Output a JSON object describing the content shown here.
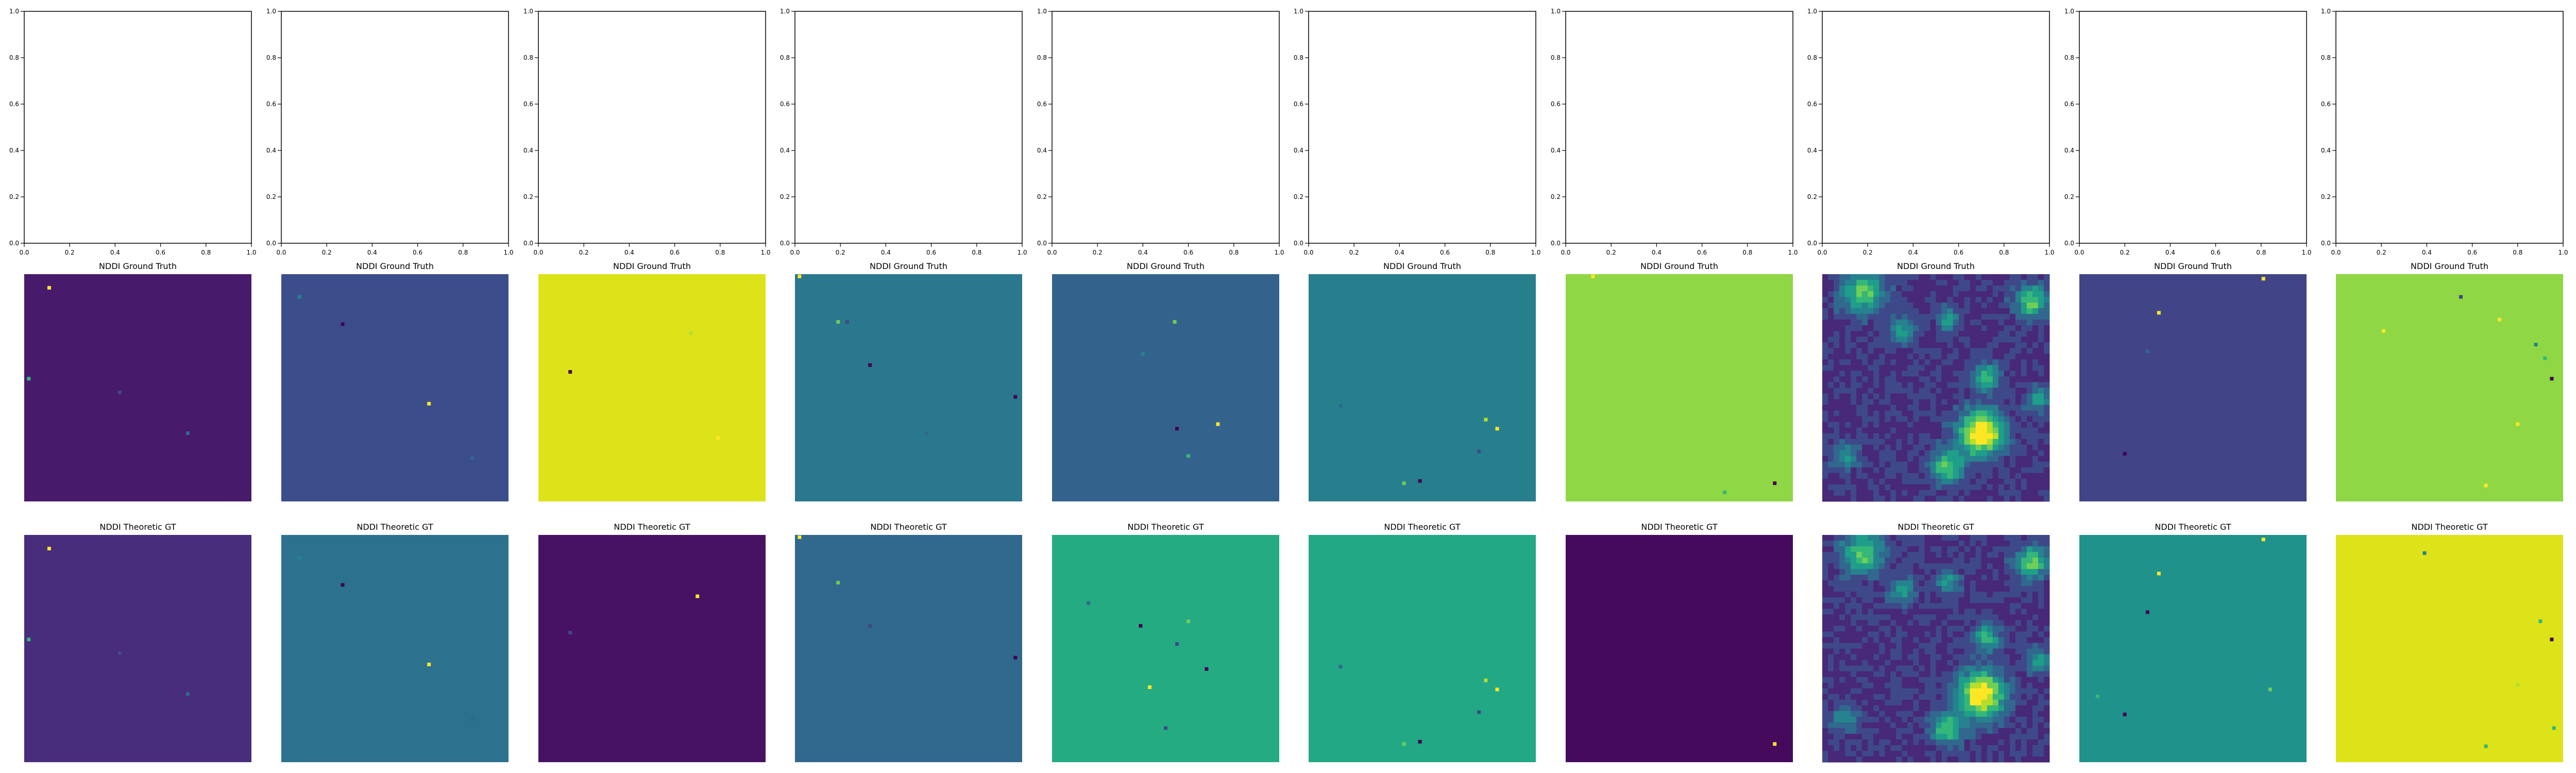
{
  "figure": {
    "row_titles": [
      "NDDI Ground Truth",
      "NDDI Theoretic GT"
    ]
  },
  "empty_axes": {
    "x_ticks": [
      "0.0",
      "0.2",
      "0.4",
      "0.6",
      "0.8",
      "1.0"
    ],
    "y_ticks": [
      "0.0",
      "0.2",
      "0.4",
      "0.6",
      "0.8",
      "1.0"
    ]
  },
  "colors": {
    "viridis": [
      "#440154",
      "#482878",
      "#3e4989",
      "#31688e",
      "#26828e",
      "#1f9e89",
      "#35b779",
      "#6ece58",
      "#b5de2b",
      "#fde725"
    ]
  },
  "chart_data": [
    {
      "type": "heatmap",
      "description_row": "ground_truth",
      "title": "NDDI Ground Truth",
      "panels": [
        {
          "background": "#481a6c",
          "pattern": "sparse",
          "specks": [
            [
              0.11,
              0.06,
              "#fde725"
            ],
            [
              0.02,
              0.46,
              "#35b779"
            ],
            [
              0.42,
              0.52,
              "#3e4989"
            ],
            [
              0.72,
              0.7,
              "#31688e"
            ]
          ]
        },
        {
          "background": "#3c4d8b",
          "pattern": "sparse",
          "specks": [
            [
              0.27,
              0.22,
              "#440154"
            ],
            [
              0.65,
              0.57,
              "#fde725"
            ],
            [
              0.08,
              0.1,
              "#26828e"
            ],
            [
              0.84,
              0.81,
              "#31688e"
            ]
          ]
        },
        {
          "background": "#dce319",
          "pattern": "sparse",
          "specks": [
            [
              0.14,
              0.43,
              "#440154"
            ],
            [
              0.79,
              0.72,
              "#fde725"
            ],
            [
              0.67,
              0.26,
              "#b5de2b"
            ]
          ]
        },
        {
          "background": "#2a788e",
          "pattern": "sparse",
          "specks": [
            [
              0.02,
              0.01,
              "#fde725"
            ],
            [
              0.19,
              0.21,
              "#6ece58"
            ],
            [
              0.33,
              0.4,
              "#440154"
            ],
            [
              0.97,
              0.54,
              "#440154"
            ],
            [
              0.58,
              0.7,
              "#31688e"
            ],
            [
              0.23,
              0.21,
              "#3e4989"
            ]
          ]
        },
        {
          "background": "#33638d",
          "pattern": "sparse",
          "specks": [
            [
              0.55,
              0.68,
              "#440154"
            ],
            [
              0.73,
              0.66,
              "#fde725"
            ],
            [
              0.54,
              0.21,
              "#6ece58"
            ],
            [
              0.6,
              0.8,
              "#35b779"
            ],
            [
              0.4,
              0.35,
              "#26828e"
            ]
          ]
        },
        {
          "background": "#277f8e",
          "pattern": "sparse",
          "specks": [
            [
              0.49,
              0.91,
              "#440154"
            ],
            [
              0.42,
              0.92,
              "#6ece58"
            ],
            [
              0.83,
              0.68,
              "#fde725"
            ],
            [
              0.78,
              0.64,
              "#b5de2b"
            ],
            [
              0.75,
              0.78,
              "#3e4989"
            ],
            [
              0.14,
              0.58,
              "#31688e"
            ]
          ]
        },
        {
          "background": "#8fd744",
          "pattern": "sparse",
          "specks": [
            [
              0.92,
              0.92,
              "#440154"
            ],
            [
              0.12,
              0.01,
              "#fde725"
            ],
            [
              0.7,
              0.96,
              "#35b779"
            ]
          ]
        },
        {
          "background": "#3b518b",
          "pattern": "noisy",
          "specks": []
        },
        {
          "background": "#414487",
          "pattern": "sparse",
          "specks": [
            [
              0.35,
              0.17,
              "#fde725"
            ],
            [
              0.2,
              0.79,
              "#440154"
            ],
            [
              0.81,
              0.02,
              "#fde725"
            ],
            [
              0.3,
              0.34,
              "#31688e"
            ]
          ]
        },
        {
          "background": "#8fd744",
          "pattern": "sparse",
          "specks": [
            [
              0.95,
              0.46,
              "#440154"
            ],
            [
              0.8,
              0.66,
              "#fde725"
            ],
            [
              0.21,
              0.25,
              "#fde725"
            ],
            [
              0.88,
              0.31,
              "#26828e"
            ],
            [
              0.72,
              0.2,
              "#fde725"
            ],
            [
              0.66,
              0.93,
              "#fde725"
            ],
            [
              0.55,
              0.1,
              "#414487"
            ],
            [
              0.92,
              0.37,
              "#35b779"
            ]
          ]
        }
      ]
    },
    {
      "type": "heatmap",
      "description_row": "theoretic",
      "title": "NDDI Theoretic GT",
      "panels": [
        {
          "background": "#472d7b",
          "pattern": "sparse",
          "specks": [
            [
              0.11,
              0.06,
              "#fde725"
            ],
            [
              0.02,
              0.46,
              "#35b779"
            ],
            [
              0.42,
              0.52,
              "#3e4989"
            ],
            [
              0.72,
              0.7,
              "#31688e"
            ]
          ]
        },
        {
          "background": "#2c728e",
          "pattern": "sparse",
          "specks": [
            [
              0.27,
              0.22,
              "#440154"
            ],
            [
              0.65,
              0.57,
              "#fde725"
            ],
            [
              0.08,
              0.1,
              "#26828e"
            ],
            [
              0.84,
              0.81,
              "#31688e"
            ]
          ]
        },
        {
          "background": "#471164",
          "pattern": "sparse",
          "specks": [
            [
              0.7,
              0.27,
              "#fde725"
            ],
            [
              0.14,
              0.43,
              "#3e4989"
            ]
          ]
        },
        {
          "background": "#31688e",
          "pattern": "sparse",
          "specks": [
            [
              0.02,
              0.01,
              "#fde725"
            ],
            [
              0.19,
              0.21,
              "#6ece58"
            ],
            [
              0.97,
              0.54,
              "#440154"
            ],
            [
              0.33,
              0.4,
              "#3e4989"
            ]
          ]
        },
        {
          "background": "#25ab82",
          "pattern": "sparse",
          "specks": [
            [
              0.39,
              0.4,
              "#440154"
            ],
            [
              0.43,
              0.67,
              "#fde725"
            ],
            [
              0.68,
              0.59,
              "#440154"
            ],
            [
              0.16,
              0.3,
              "#31688e"
            ],
            [
              0.55,
              0.48,
              "#3e4989"
            ],
            [
              0.5,
              0.85,
              "#3e4989"
            ],
            [
              0.6,
              0.38,
              "#6ece58"
            ]
          ]
        },
        {
          "background": "#22a884",
          "pattern": "sparse",
          "specks": [
            [
              0.49,
              0.91,
              "#440154"
            ],
            [
              0.42,
              0.92,
              "#6ece58"
            ],
            [
              0.83,
              0.68,
              "#fde725"
            ],
            [
              0.78,
              0.64,
              "#b5de2b"
            ],
            [
              0.75,
              0.78,
              "#3e4989"
            ],
            [
              0.14,
              0.58,
              "#31688e"
            ]
          ]
        },
        {
          "background": "#450a5c",
          "pattern": "sparse",
          "specks": [
            [
              0.92,
              0.92,
              "#fde725"
            ]
          ]
        },
        {
          "background": "#3b518b",
          "pattern": "noisy",
          "specks": []
        },
        {
          "background": "#20928c",
          "pattern": "sparse",
          "specks": [
            [
              0.35,
              0.17,
              "#fde725"
            ],
            [
              0.2,
              0.79,
              "#440154"
            ],
            [
              0.81,
              0.02,
              "#fde725"
            ],
            [
              0.3,
              0.34,
              "#440154"
            ],
            [
              0.84,
              0.68,
              "#6ece58"
            ],
            [
              0.08,
              0.71,
              "#35b779"
            ]
          ]
        },
        {
          "background": "#dce319",
          "pattern": "sparse",
          "specks": [
            [
              0.95,
              0.46,
              "#440154"
            ],
            [
              0.39,
              0.08,
              "#26828e"
            ],
            [
              0.9,
              0.38,
              "#35b779"
            ],
            [
              0.8,
              0.66,
              "#b5de2b"
            ],
            [
              0.66,
              0.93,
              "#35b779"
            ],
            [
              0.96,
              0.85,
              "#35b779"
            ]
          ]
        }
      ]
    }
  ]
}
